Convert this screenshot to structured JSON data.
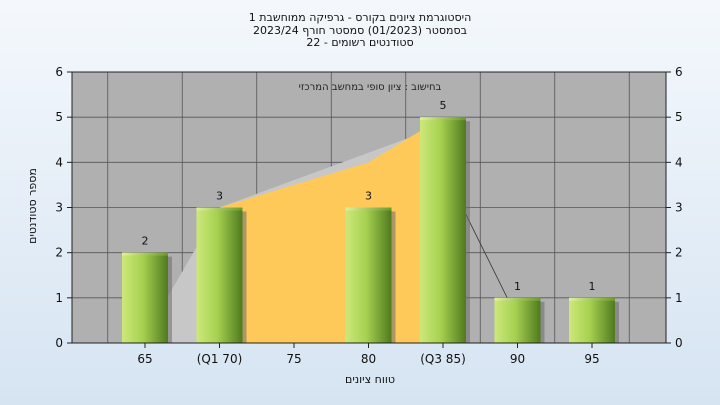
{
  "chart_data": {
    "type": "bar",
    "title_lines": [
      "היסטוגרמת ציונים בקורס - גרפיקה ממוחשבת 1",
      "בסמסטר  (01/2023)  סמסטר חורף  2023/24",
      "סטודנטים רשומים - 22"
    ],
    "categories": [
      "65",
      "(Q1 70)",
      "75",
      "80",
      "(Q3 85)",
      "90",
      "95"
    ],
    "values": [
      2,
      3,
      0,
      3,
      5,
      1,
      1
    ],
    "value_labels": [
      "2",
      "3",
      "",
      "3",
      "5",
      "1",
      "1"
    ],
    "box_area": {
      "x_from": "(Q1 70)",
      "x_to": "(Q3 85)",
      "y_profile": [
        3,
        3.5,
        4,
        5
      ]
    },
    "xlabel": "טווח ציונים",
    "ylabel": "מספר סטודנטים",
    "ylim": [
      0,
      6
    ],
    "yticks": [
      "0",
      "1",
      "2",
      "3",
      "4",
      "5",
      "6"
    ],
    "annotation": "בחישוב : ציון סופי במחשב המרכזי",
    "grid": true,
    "colors": {
      "bar_light": "#cde87a",
      "bar_mid": "#8fbe3f",
      "bar_dark": "#4f7a1e",
      "area": "#ffc95a",
      "plot_bg": "#b0b0b0",
      "grid": "#555555"
    }
  }
}
